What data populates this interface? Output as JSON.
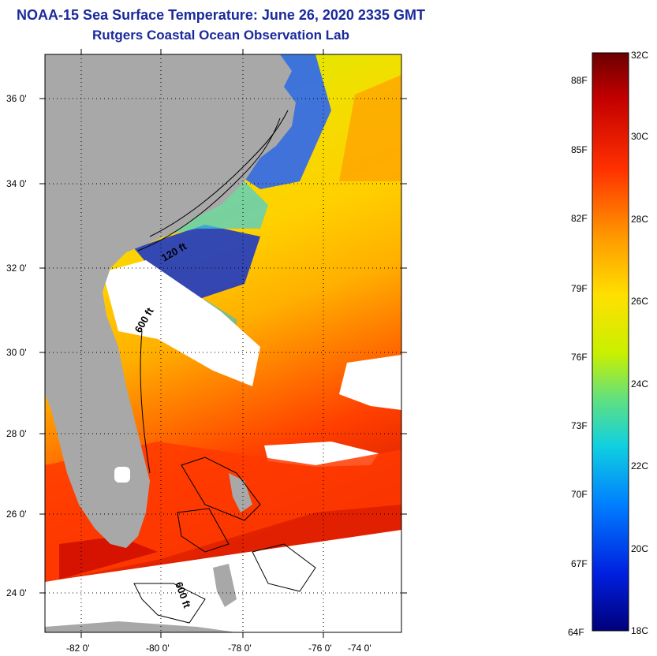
{
  "header": {
    "title": "NOAA-15 Sea Surface Temperature:  June 26, 2020 2335 GMT",
    "subtitle": "Rutgers Coastal Ocean Observation Lab"
  },
  "map": {
    "lat_labels": [
      "36 0'",
      "34 0'",
      "32 0'",
      "30 0'",
      "28 0'",
      "26 0'",
      "24 0'"
    ],
    "lon_labels": [
      "-82 0'",
      "-80 0'",
      "-78 0'",
      "-76 0'",
      "-74 0'"
    ],
    "contour_labels": [
      "120 ft",
      "600 ft",
      "600 ft"
    ],
    "colors": {
      "land": "#a8a8a8",
      "cloud": "#ffffff"
    }
  },
  "colorbar": {
    "f_labels": [
      "88F",
      "85F",
      "82F",
      "79F",
      "76F",
      "73F",
      "70F",
      "67F",
      "64F"
    ],
    "c_labels": [
      "32C",
      "30C",
      "28C",
      "26C",
      "24C",
      "22C",
      "20C",
      "18C"
    ],
    "stops": [
      "#6b0000",
      "#c40000",
      "#ff3000",
      "#ff9a00",
      "#ffe000",
      "#c8f000",
      "#60e080",
      "#10d0e0",
      "#0080ff",
      "#0020e0",
      "#00007a"
    ]
  }
}
